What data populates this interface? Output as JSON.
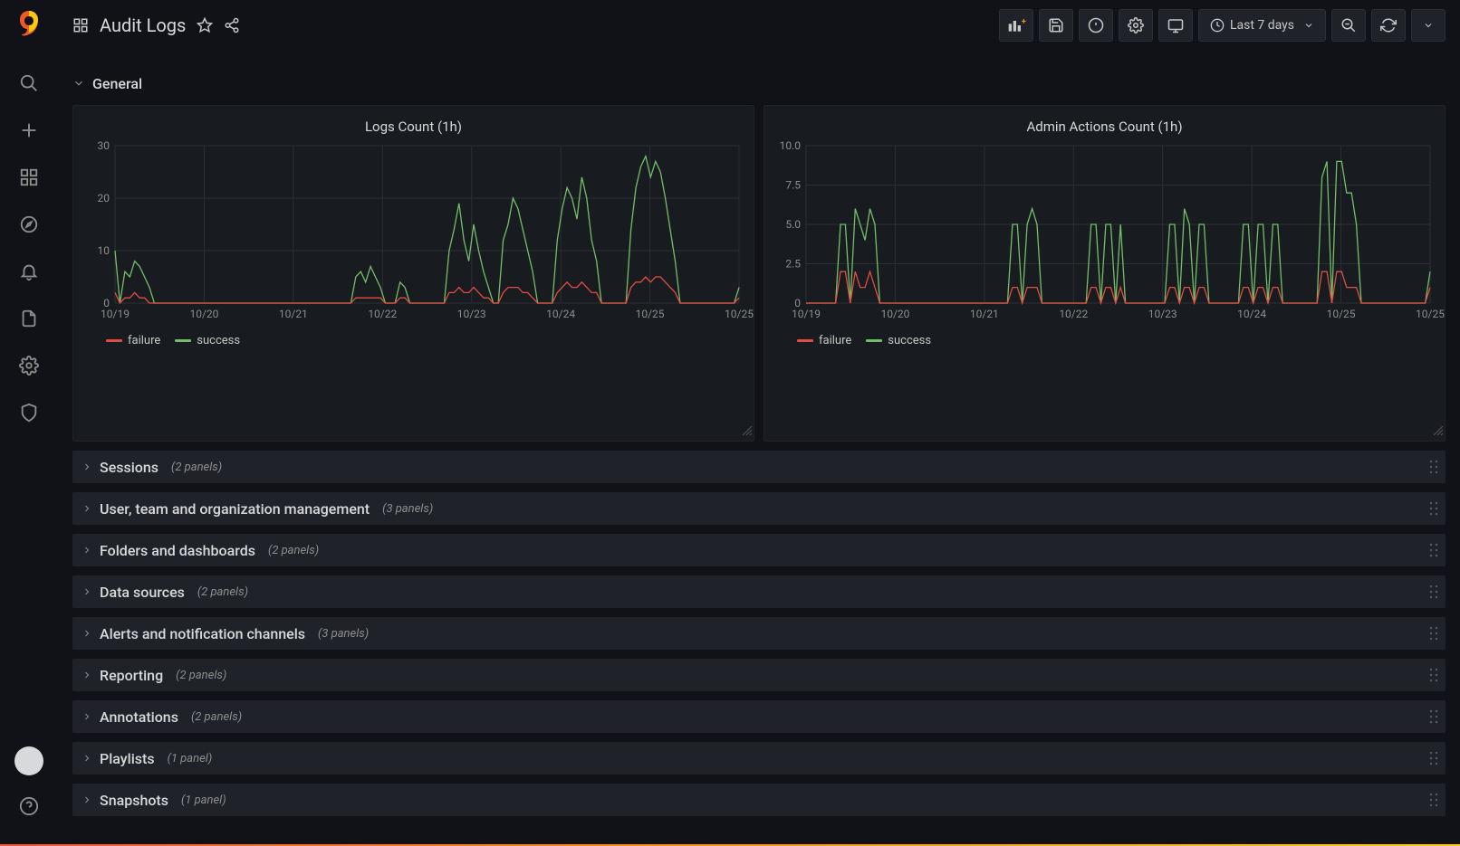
{
  "brand": {
    "logo_color1": "#f05a28",
    "logo_color2": "#fbca0a"
  },
  "toolbar": {
    "dashboard_title": "Audit Logs",
    "timerange_label": "Last 7 days"
  },
  "colors": {
    "panel_bg": "#181b1f",
    "grid": "#2c2f34",
    "axis_text": "#8e8e8e",
    "series_failure": "#e24d42",
    "series_success": "#73bf69"
  },
  "rows": {
    "general": {
      "title": "General",
      "expanded": true
    },
    "collapsed": [
      {
        "title": "Sessions",
        "panel_count_label": "(2 panels)"
      },
      {
        "title": "User, team and organization management",
        "panel_count_label": "(3 panels)"
      },
      {
        "title": "Folders and dashboards",
        "panel_count_label": "(2 panels)"
      },
      {
        "title": "Data sources",
        "panel_count_label": "(2 panels)"
      },
      {
        "title": "Alerts and notification channels",
        "panel_count_label": "(3 panels)"
      },
      {
        "title": "Reporting",
        "panel_count_label": "(2 panels)"
      },
      {
        "title": "Annotations",
        "panel_count_label": "(2 panels)"
      },
      {
        "title": "Playlists",
        "panel_count_label": "(1 panel)"
      },
      {
        "title": "Snapshots",
        "panel_count_label": "(1 panel)"
      }
    ]
  },
  "panels": {
    "left": {
      "title": "Logs Count (1h)",
      "type": "line",
      "ylim": [
        0,
        30
      ],
      "ytick_step": 10,
      "yticks": [
        "0",
        "10",
        "20",
        "30"
      ],
      "xticks": [
        "10/19",
        "10/20",
        "10/21",
        "10/22",
        "10/23",
        "10/24",
        "10/25",
        "10/25"
      ],
      "legend": [
        {
          "label": "failure",
          "color": "#e24d42"
        },
        {
          "label": "success",
          "color": "#73bf69"
        }
      ],
      "series": {
        "success": [
          10,
          0,
          6,
          5,
          8,
          7,
          5,
          3,
          0,
          0,
          0,
          0,
          0,
          0,
          0,
          0,
          0,
          0,
          0,
          0,
          0,
          0,
          0,
          0,
          0,
          0,
          0,
          0,
          0,
          0,
          0,
          0,
          0,
          0,
          0,
          0,
          0,
          0,
          0,
          0,
          0,
          0,
          0,
          0,
          0,
          0,
          0,
          0,
          0,
          5,
          6,
          4,
          7,
          5,
          3,
          0,
          0,
          0,
          4,
          3,
          0,
          0,
          0,
          0,
          0,
          0,
          0,
          0,
          10,
          14,
          19,
          12,
          8,
          15,
          10,
          6,
          3,
          0,
          0,
          12,
          15,
          20,
          18,
          14,
          10,
          6,
          0,
          0,
          0,
          0,
          12,
          18,
          22,
          20,
          16,
          24,
          20,
          12,
          8,
          0,
          0,
          0,
          0,
          0,
          0,
          14,
          22,
          26,
          28,
          24,
          27,
          25,
          20,
          14,
          8,
          0,
          0,
          0,
          0,
          0,
          0,
          0,
          0,
          0,
          0,
          0,
          0,
          3
        ],
        "failure": [
          2,
          0,
          1,
          1,
          2,
          1,
          1,
          0,
          0,
          0,
          0,
          0,
          0,
          0,
          0,
          0,
          0,
          0,
          0,
          0,
          0,
          0,
          0,
          0,
          0,
          0,
          0,
          0,
          0,
          0,
          0,
          0,
          0,
          0,
          0,
          0,
          0,
          0,
          0,
          0,
          0,
          0,
          0,
          0,
          0,
          0,
          0,
          0,
          0,
          1,
          1,
          1,
          1,
          1,
          1,
          0,
          0,
          0,
          1,
          1,
          0,
          0,
          0,
          0,
          0,
          0,
          0,
          0,
          2,
          2,
          3,
          2,
          2,
          3,
          2,
          1,
          1,
          0,
          0,
          2,
          3,
          3,
          3,
          2,
          2,
          1,
          0,
          0,
          0,
          0,
          2,
          3,
          4,
          3,
          3,
          4,
          3,
          2,
          2,
          0,
          0,
          0,
          0,
          0,
          0,
          3,
          4,
          4,
          5,
          4,
          5,
          5,
          4,
          3,
          2,
          0,
          0,
          0,
          0,
          0,
          0,
          0,
          0,
          0,
          0,
          0,
          0,
          1
        ]
      }
    },
    "right": {
      "title": "Admin Actions Count (1h)",
      "type": "line",
      "ylim": [
        0,
        10
      ],
      "ytick_step": 2.5,
      "yticks": [
        "0",
        "2.5",
        "5.0",
        "7.5",
        "10.0"
      ],
      "xticks": [
        "10/19",
        "10/20",
        "10/21",
        "10/22",
        "10/23",
        "10/24",
        "10/25",
        "10/25"
      ],
      "legend": [
        {
          "label": "failure",
          "color": "#e24d42"
        },
        {
          "label": "success",
          "color": "#73bf69"
        }
      ],
      "series": {
        "success": [
          0,
          0,
          0,
          0,
          0,
          0,
          0,
          5,
          5,
          0,
          6,
          5,
          4,
          6,
          5,
          0,
          0,
          0,
          0,
          0,
          0,
          0,
          0,
          0,
          0,
          0,
          0,
          0,
          0,
          0,
          0,
          0,
          0,
          0,
          0,
          0,
          0,
          0,
          0,
          0,
          0,
          0,
          5,
          5,
          0,
          5,
          6,
          5,
          0,
          0,
          0,
          0,
          0,
          0,
          0,
          0,
          0,
          0,
          5,
          5,
          0,
          5,
          5,
          0,
          5,
          0,
          0,
          0,
          0,
          0,
          0,
          0,
          0,
          0,
          5,
          5,
          0,
          6,
          5,
          0,
          5,
          5,
          0,
          0,
          0,
          0,
          0,
          0,
          0,
          5,
          5,
          0,
          5,
          5,
          0,
          5,
          5,
          0,
          0,
          0,
          0,
          0,
          0,
          0,
          0,
          8,
          9,
          0,
          9,
          9,
          7,
          7,
          5,
          0,
          0,
          0,
          0,
          0,
          0,
          0,
          0,
          0,
          0,
          0,
          0,
          0,
          0,
          2
        ],
        "failure": [
          0,
          0,
          0,
          0,
          0,
          0,
          0,
          2,
          2,
          0,
          2,
          1,
          1,
          2,
          1,
          0,
          0,
          0,
          0,
          0,
          0,
          0,
          0,
          0,
          0,
          0,
          0,
          0,
          0,
          0,
          0,
          0,
          0,
          0,
          0,
          0,
          0,
          0,
          0,
          0,
          0,
          0,
          1,
          1,
          0,
          1,
          1,
          1,
          0,
          0,
          0,
          0,
          0,
          0,
          0,
          0,
          0,
          0,
          1,
          1,
          0,
          1,
          1,
          0,
          1,
          0,
          0,
          0,
          0,
          0,
          0,
          0,
          0,
          0,
          1,
          1,
          0,
          1,
          1,
          0,
          1,
          1,
          0,
          0,
          0,
          0,
          0,
          0,
          0,
          1,
          1,
          0,
          1,
          1,
          0,
          1,
          1,
          0,
          0,
          0,
          0,
          0,
          0,
          0,
          0,
          2,
          2,
          0,
          2,
          2,
          1,
          1,
          1,
          0,
          0,
          0,
          0,
          0,
          0,
          0,
          0,
          0,
          0,
          0,
          0,
          0,
          0,
          1
        ]
      }
    }
  }
}
